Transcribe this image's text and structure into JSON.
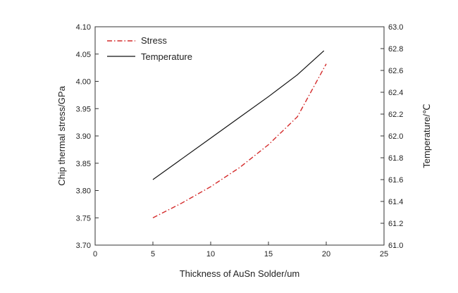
{
  "chart_data": {
    "type": "line",
    "title": "",
    "xlabel": "Thickness of AuSn Solder/um",
    "ylabel_left": "Chip thermal stress/GPa",
    "ylabel_right": "Temperature/℃",
    "xlim": [
      0,
      25
    ],
    "ylim_left": [
      3.7,
      4.1
    ],
    "ylim_right": [
      61.0,
      63.0
    ],
    "x_ticks": [
      0,
      5,
      10,
      15,
      20,
      25
    ],
    "y_left_ticks": [
      "3.70",
      "3.75",
      "3.80",
      "3.85",
      "3.90",
      "3.95",
      "4.00",
      "4.05",
      "4.10"
    ],
    "y_right_ticks": [
      "61.0",
      "61.2",
      "61.4",
      "61.6",
      "61.8",
      "62.0",
      "62.2",
      "62.4",
      "62.6",
      "62.8",
      "63.0"
    ],
    "grid": false,
    "legend_position": "top-left",
    "series": [
      {
        "name": "Stress",
        "axis": "left",
        "color": "#d42a2a",
        "style": "dash-dot",
        "x": [
          5,
          7.5,
          10,
          12.5,
          15,
          17.5,
          20
        ],
        "y": [
          3.75,
          3.777,
          3.807,
          3.842,
          3.884,
          3.935,
          4.032
        ]
      },
      {
        "name": "Temperature",
        "axis": "right",
        "color": "#111111",
        "style": "solid",
        "x": [
          5,
          7.5,
          10,
          12.5,
          15,
          17.5,
          19.8
        ],
        "y": [
          61.6,
          61.79,
          61.98,
          62.17,
          62.36,
          62.56,
          62.78
        ]
      }
    ]
  }
}
